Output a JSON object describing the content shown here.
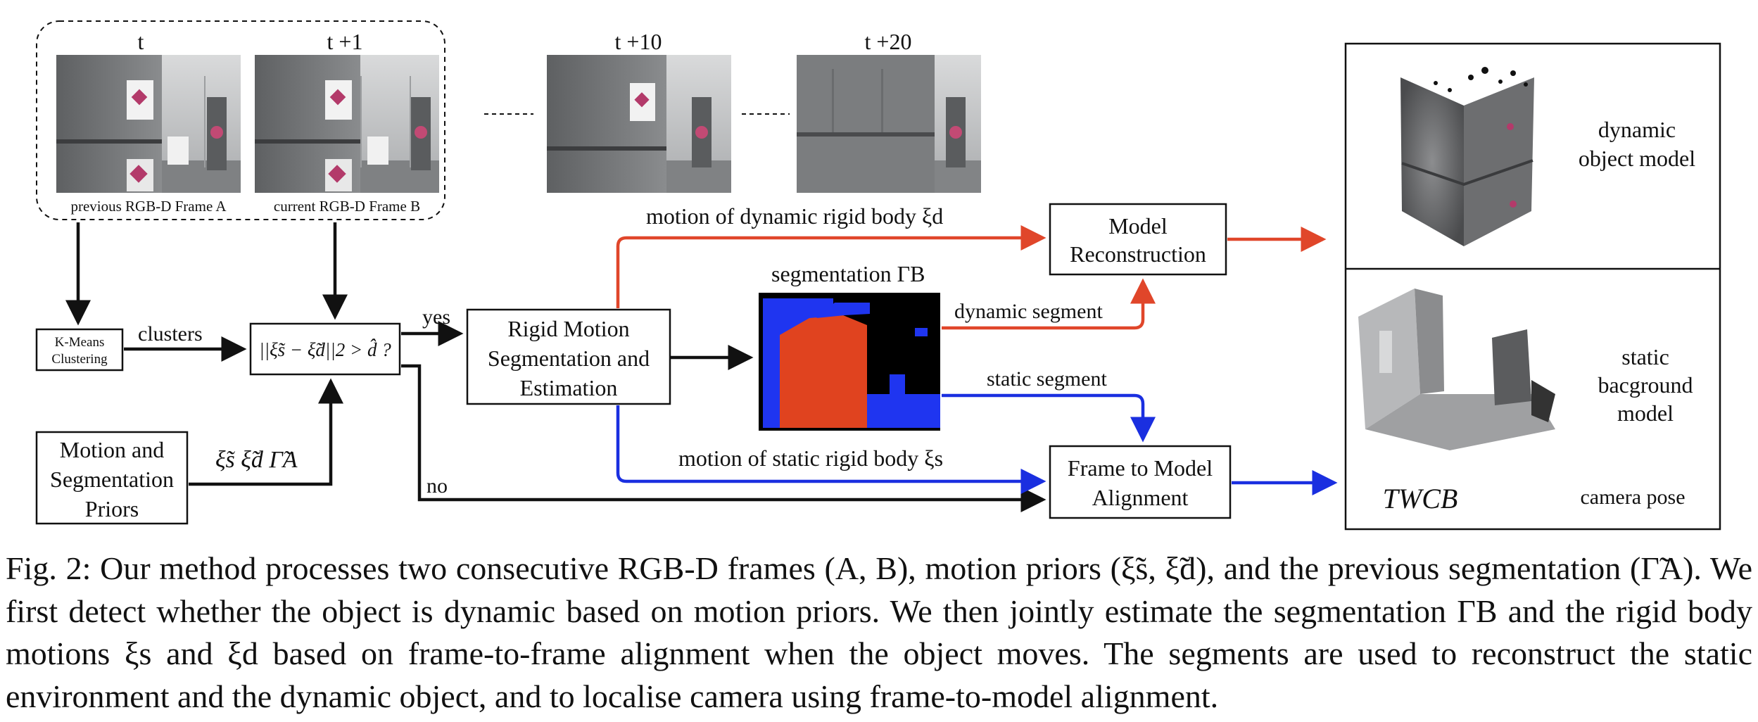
{
  "frames": {
    "t": "t",
    "t1": "t +1",
    "t10": "t +10",
    "t20": "t +20",
    "caption_a": "previous RGB-D Frame A",
    "caption_b": "current RGB-D Frame B"
  },
  "boxes": {
    "kmeans_line1": "K-Means",
    "kmeans_line2": "Clustering",
    "priors_line1": "Motion and",
    "priors_line2": "Segmentation",
    "priors_line3": "Priors",
    "decision": "||ξ̃s − ξ̃d||2 > d̂ ?",
    "rigid_line1": "Rigid Motion",
    "rigid_line2": "Segmentation and",
    "rigid_line3": "Estimation",
    "model_line1": "Model",
    "model_line2": "Reconstruction",
    "align_line1": "Frame to Model",
    "align_line2": "Alignment"
  },
  "edges": {
    "clusters": "clusters",
    "yes": "yes",
    "no": "no",
    "priors_symbols": "ξ̃s  ξ̃d  Γ̃A",
    "dynamic_motion": "motion of dynamic rigid body  ξd",
    "static_motion": "motion of static rigid body  ξs",
    "segmentation": "segmentation  ΓB",
    "dynamic_segment": "dynamic segment",
    "static_segment": "static segment"
  },
  "outputs": {
    "dynamic_line1": "dynamic",
    "dynamic_line2": "object model",
    "static_line1": "static",
    "static_line2": "bacground",
    "static_line3": "model",
    "pose_symbol": "TWCB",
    "pose_label": "camera pose"
  },
  "colors": {
    "red": "#e0462a",
    "blue": "#1a2fe0",
    "black": "#111111",
    "seg_orange": "#e0431f",
    "seg_blue": "#1f35f0"
  },
  "caption": "Fig. 2: Our method processes two consecutive RGB-D frames (A, B), motion priors (ξ̃s, ξ̃d), and the previous segmentation (Γ̃A). We first detect whether the object is dynamic based on motion priors. We then jointly estimate the segmentation ΓB and the rigid body motions ξs and ξd based on frame-to-frame alignment when the object moves. The segments are used to reconstruct the static environment and the dynamic object, and to localise camera using frame-to-model alignment."
}
